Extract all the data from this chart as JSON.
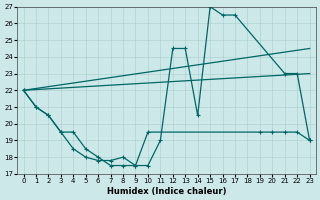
{
  "xlabel": "Humidex (Indice chaleur)",
  "xlim": [
    -0.5,
    23.5
  ],
  "ylim": [
    17,
    27
  ],
  "yticks": [
    17,
    18,
    19,
    20,
    21,
    22,
    23,
    24,
    25,
    26,
    27
  ],
  "xticks": [
    0,
    1,
    2,
    3,
    4,
    5,
    6,
    7,
    8,
    9,
    10,
    11,
    12,
    13,
    14,
    15,
    16,
    17,
    18,
    19,
    20,
    21,
    22,
    23
  ],
  "bg_color": "#cce8e8",
  "line_color": "#006666",
  "grid_color": "#aacccc",
  "line1_x": [
    0,
    1,
    2,
    3,
    4,
    5,
    6,
    7,
    8,
    9,
    10,
    11,
    12,
    13,
    14,
    15,
    16,
    17,
    21,
    22,
    23
  ],
  "line1_y": [
    22.0,
    21.0,
    20.5,
    19.5,
    18.5,
    18.0,
    17.8,
    17.8,
    18.0,
    17.5,
    17.5,
    19.0,
    24.5,
    24.5,
    20.5,
    27.0,
    26.5,
    26.5,
    23.0,
    23.0,
    19.0
  ],
  "line2_x": [
    0,
    1,
    2,
    3,
    4,
    5,
    6,
    7,
    8,
    9,
    10,
    19,
    20,
    21,
    22,
    23
  ],
  "line2_y": [
    22.0,
    21.0,
    20.5,
    19.5,
    19.5,
    18.5,
    18.0,
    17.5,
    17.5,
    17.5,
    19.5,
    19.5,
    19.5,
    19.5,
    19.5,
    19.0
  ],
  "line3_x": [
    0,
    23
  ],
  "line3_y": [
    22.0,
    23.0
  ],
  "line4_x": [
    0,
    23
  ],
  "line4_y": [
    22.0,
    24.5
  ]
}
